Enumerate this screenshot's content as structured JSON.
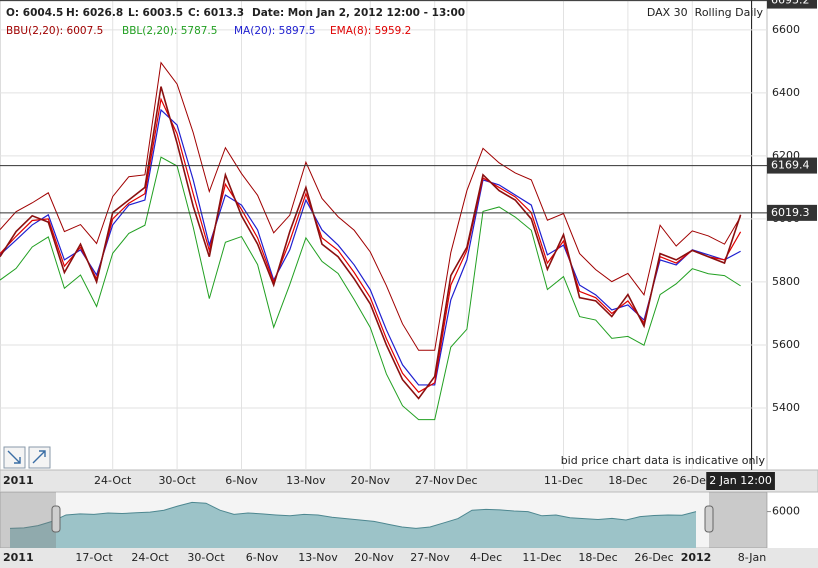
{
  "chart_data": [
    {
      "type": "line",
      "info": [
        "O: 6004.5",
        "H: 6026.8",
        "L: 6003.5",
        "C: 6013.3",
        "Date: Mon Jan 2, 2012 12:00 - 13:00"
      ],
      "title": "DAX 30  Rolling Daily",
      "note": "bid price chart data is indicative only",
      "year_label": "2011",
      "categories": [
        null,
        null,
        null,
        null,
        null,
        null,
        null,
        "24-Oct",
        null,
        null,
        null,
        "30-Oct",
        null,
        null,
        null,
        "6-Nov",
        null,
        null,
        null,
        "13-Nov",
        null,
        null,
        null,
        "20-Nov",
        null,
        null,
        null,
        "27-Nov",
        null,
        "Dec",
        null,
        null,
        null,
        null,
        null,
        "11-Dec",
        null,
        null,
        null,
        "18-Dec",
        null,
        null,
        null,
        "26-Dec",
        null,
        null,
        "2 Jan 12:00"
      ],
      "price": {
        "color": "#8b1010",
        "values": [
          5880,
          5960,
          6010,
          5990,
          5830,
          5920,
          5800,
          6020,
          6060,
          6100,
          6420,
          6240,
          6040,
          5880,
          6140,
          6010,
          5920,
          5790,
          5960,
          6100,
          5920,
          5880,
          5810,
          5730,
          5600,
          5490,
          5430,
          5500,
          5820,
          5910,
          6140,
          6090,
          6060,
          6000,
          5840,
          5950,
          5750,
          5740,
          5690,
          5760,
          5660,
          5890,
          5870,
          5900,
          5880,
          5860,
          6013.3
        ]
      },
      "series": [
        {
          "name": "BBU(2,20): 6007.5",
          "color": "#a00000",
          "values": [
            5966,
            6023,
            6051,
            6083,
            5960,
            5982,
            5922,
            6071,
            6134,
            6140,
            6496,
            6428,
            6274,
            6087,
            6226,
            6144,
            6075,
            5956,
            6012,
            6180,
            6065,
            6007,
            5964,
            5895,
            5788,
            5667,
            5583,
            5583,
            5893,
            6090,
            6224,
            6178,
            6146,
            6124,
            5996,
            6017,
            5890,
            5839,
            5801,
            5827,
            5759,
            5980,
            5914,
            5962,
            5946,
            5920,
            6007.5
          ]
        },
        {
          "name": "BBL(2,20): 5787.5",
          "color": "#22a022",
          "values": [
            5806,
            5843,
            5911,
            5943,
            5780,
            5822,
            5722,
            5891,
            5954,
            5980,
            6196,
            6168,
            5974,
            5747,
            5926,
            5944,
            5855,
            5656,
            5792,
            5940,
            5865,
            5827,
            5744,
            5655,
            5508,
            5407,
            5363,
            5363,
            5593,
            5650,
            6024,
            6038,
            6006,
            5964,
            5776,
            5817,
            5690,
            5679,
            5621,
            5627,
            5599,
            5760,
            5794,
            5842,
            5826,
            5820,
            5787.5
          ]
        },
        {
          "name": "MA(20): 5897.5",
          "color": "#2020d0",
          "values": [
            5886,
            5933,
            5981,
            6013,
            5870,
            5902,
            5822,
            5981,
            6044,
            6060,
            6346,
            6298,
            6124,
            5917,
            6076,
            6044,
            5965,
            5806,
            5902,
            6060,
            5965,
            5917,
            5854,
            5775,
            5648,
            5537,
            5473,
            5473,
            5743,
            5870,
            6124,
            6108,
            6076,
            6044,
            5886,
            5917,
            5790,
            5759,
            5711,
            5727,
            5679,
            5870,
            5854,
            5902,
            5886,
            5870,
            5897.5
          ]
        },
        {
          "name": "EMA(8): 5959.2",
          "color": "#e00000",
          "values": [
            5890,
            5945,
            5995,
            6000,
            5850,
            5910,
            5810,
            6000,
            6050,
            6080,
            6380,
            6270,
            6080,
            5900,
            6110,
            6030,
            5940,
            5800,
            5930,
            6080,
            5940,
            5900,
            5830,
            5750,
            5620,
            5510,
            5450,
            5480,
            5790,
            5900,
            6130,
            6100,
            6070,
            6020,
            5860,
            5930,
            5770,
            5750,
            5700,
            5740,
            5670,
            5880,
            5860,
            5900,
            5880,
            5870,
            5959.2
          ]
        }
      ],
      "ylim": [
        5203,
        6695
      ],
      "yticks": [
        5400,
        5600,
        5800,
        6000,
        6200,
        6400,
        6600
      ],
      "hlines": [
        6693.2,
        6169.4,
        6019.3
      ],
      "grid": true
    },
    {
      "type": "area",
      "year_label": "2011",
      "categories": [
        null,
        null,
        null,
        null,
        null,
        null,
        "17-Oct",
        null,
        null,
        null,
        "24-Oct",
        null,
        null,
        null,
        "30-Oct",
        null,
        null,
        null,
        "6-Nov",
        null,
        null,
        null,
        "13-Nov",
        null,
        null,
        null,
        "20-Nov",
        null,
        null,
        null,
        "27-Nov",
        null,
        null,
        null,
        "4-Dec",
        null,
        null,
        null,
        "11-Dec",
        null,
        null,
        null,
        "18-Dec",
        null,
        null,
        null,
        "26-Dec",
        null,
        null,
        "2012",
        null,
        null,
        null,
        "8-Jan"
      ],
      "values": [
        5400,
        5420,
        5500,
        5650,
        5880,
        5920,
        5900,
        5950,
        5930,
        5960,
        5980,
        6050,
        6200,
        6330,
        6300,
        6050,
        5900,
        5950,
        5920,
        5880,
        5850,
        5900,
        5880,
        5800,
        5750,
        5700,
        5650,
        5550,
        5450,
        5400,
        5450,
        5600,
        5750,
        6050,
        6080,
        6060,
        6020,
        6000,
        5850,
        5880,
        5780,
        5750,
        5720,
        5760,
        5700,
        5820,
        5860,
        5880,
        5870,
        6000,
        null,
        null,
        null,
        null
      ],
      "color": "#9cc3c8",
      "ylim": [
        4700,
        6700
      ],
      "yticks": [
        6000
      ]
    }
  ]
}
